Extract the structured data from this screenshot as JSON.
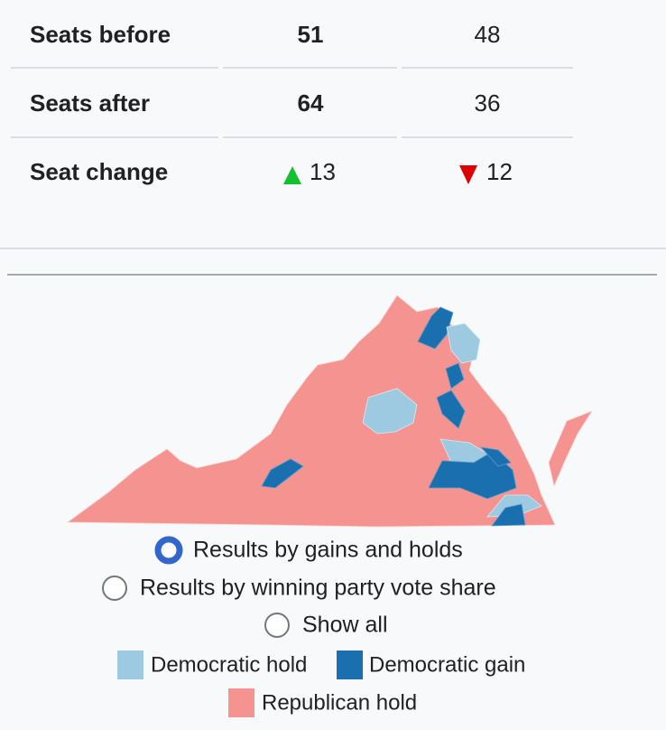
{
  "table": {
    "rows": [
      [
        "Seats before",
        "51",
        "48"
      ],
      [
        "Seats after",
        "64",
        "36"
      ],
      [
        "Seat change",
        "13",
        "12"
      ]
    ]
  },
  "map": {
    "options": [
      "Results by gains and holds",
      "Results by winning party vote share",
      "Show all"
    ],
    "legend": [
      "Democratic hold",
      "Democratic gain",
      "Republican hold"
    ]
  }
}
